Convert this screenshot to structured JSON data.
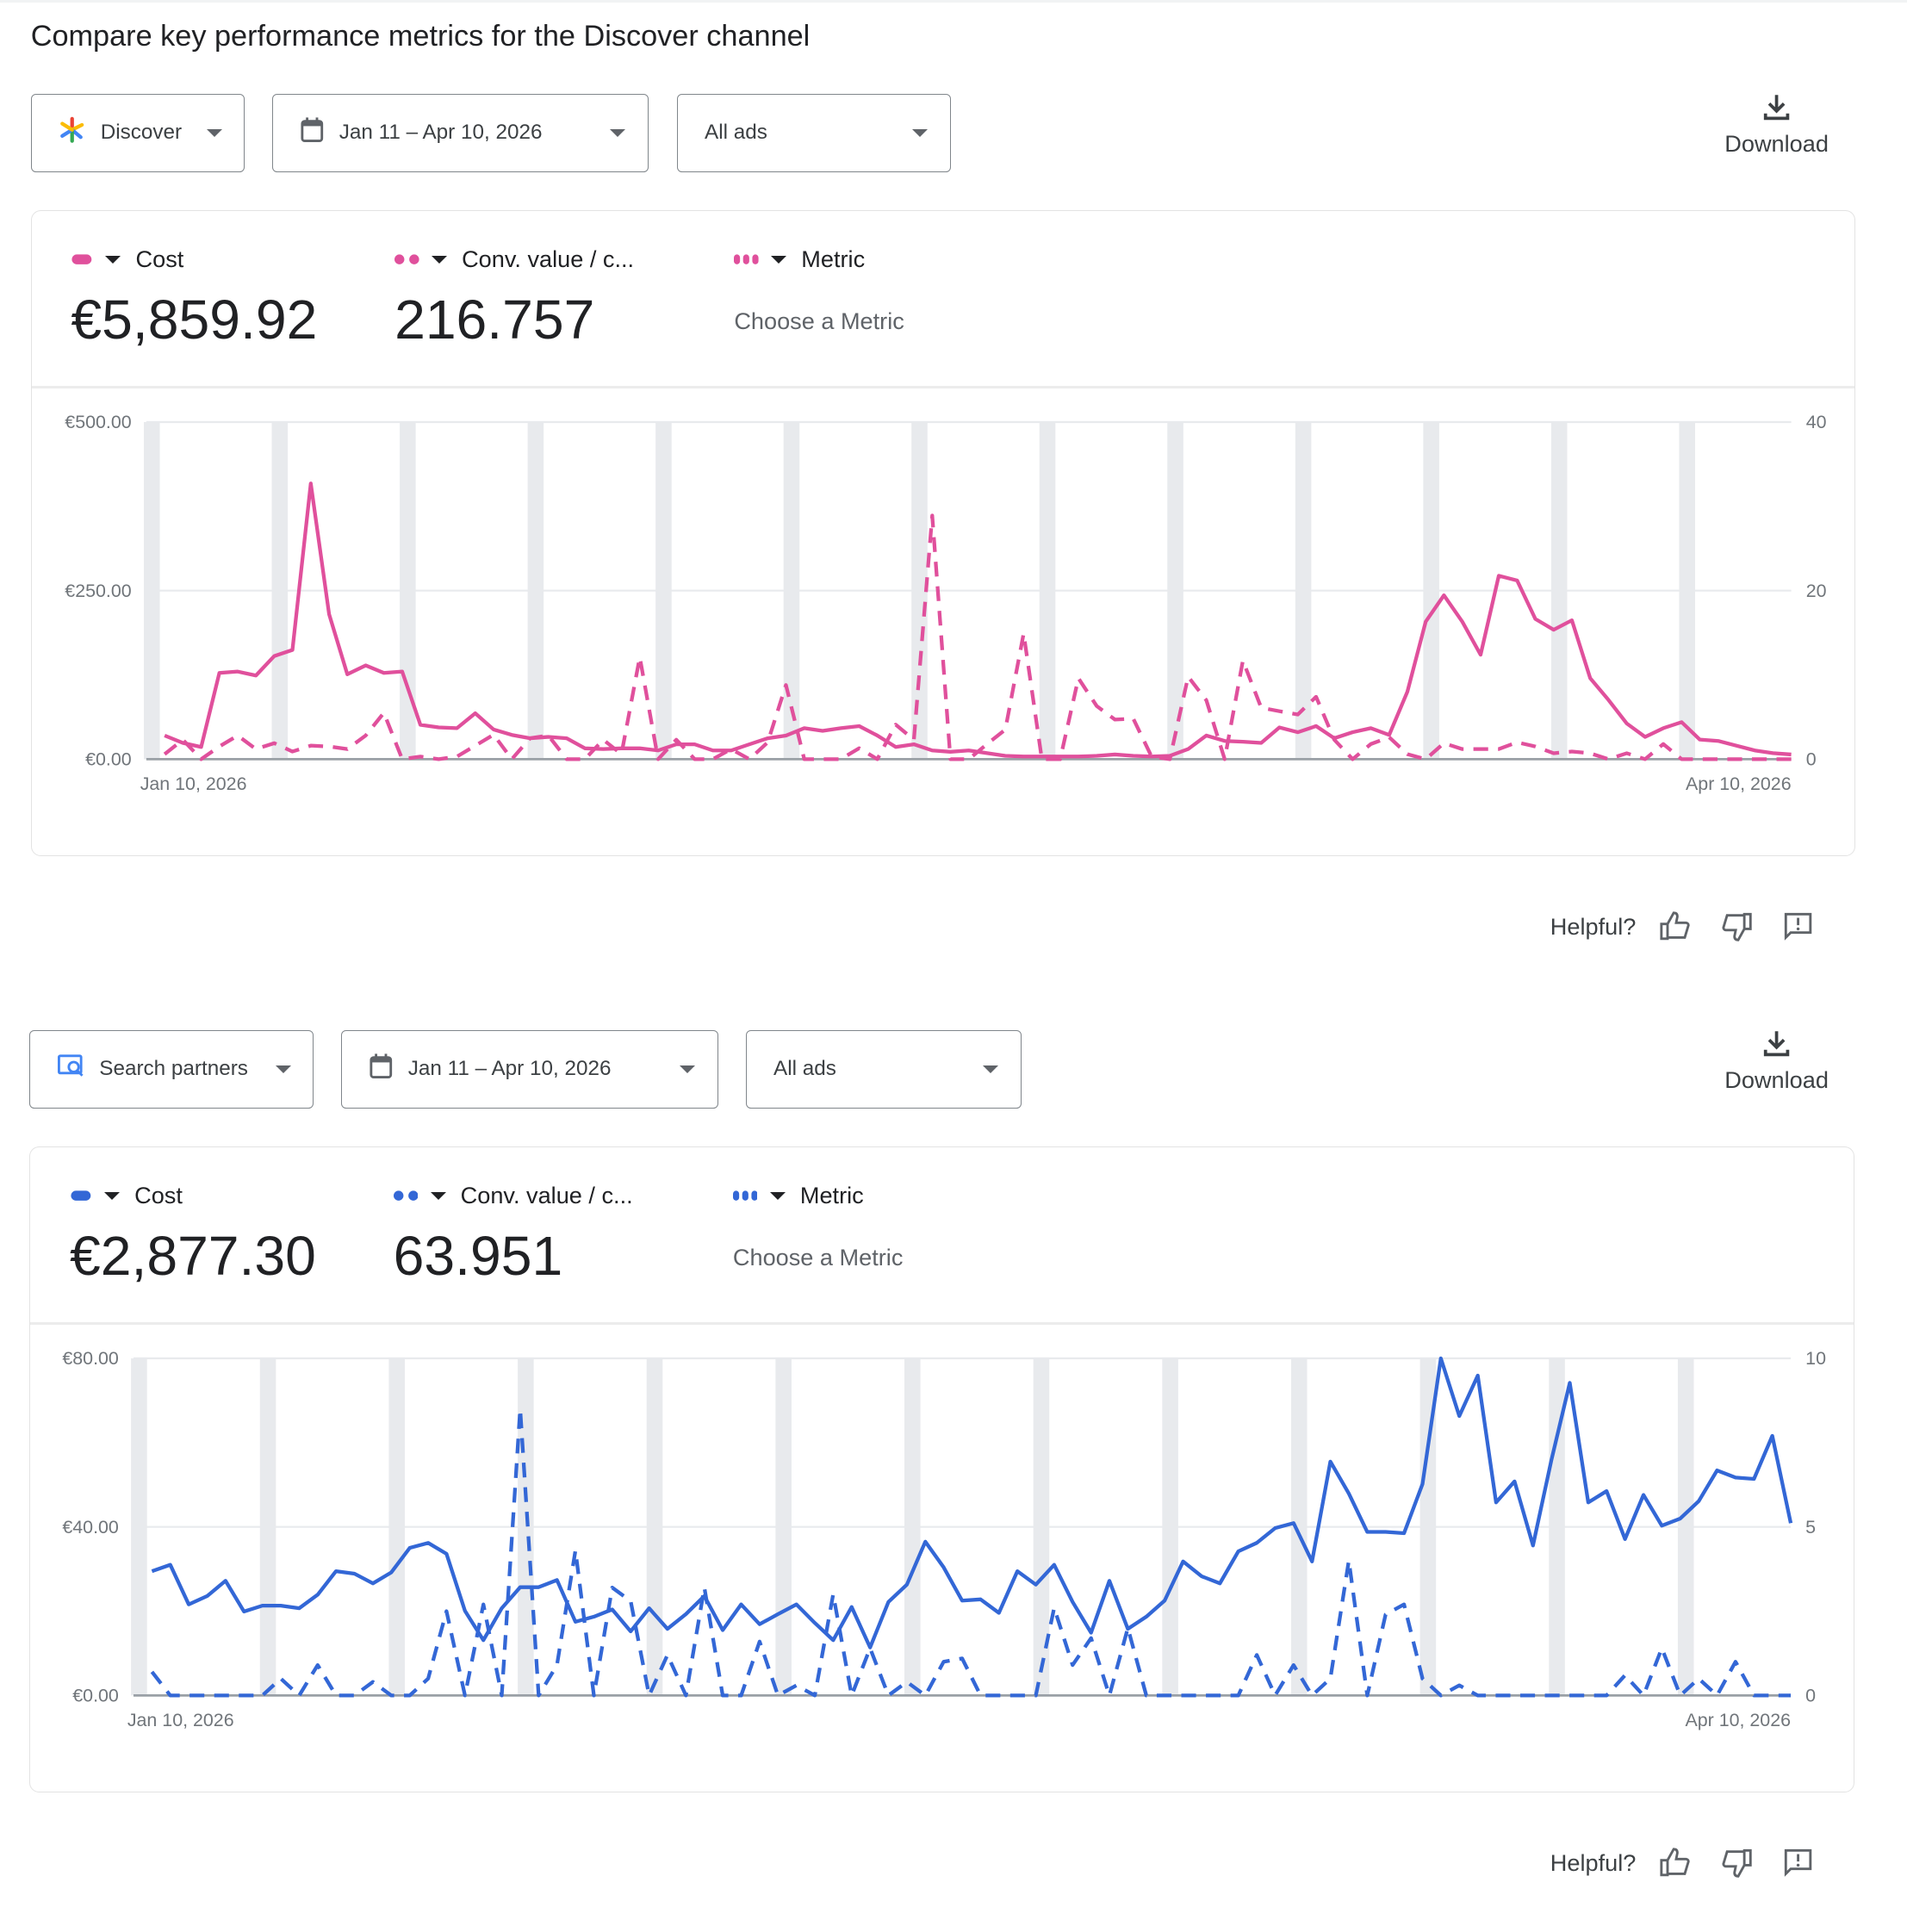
{
  "title": "Compare key performance metrics for the Discover channel",
  "feedback": {
    "label": "Helpful?"
  },
  "download_label": "Download",
  "sections": [
    {
      "channel": "Discover",
      "channel_icon": "discover-star-icon",
      "date_range": "Jan 11 – Apr 10, 2026",
      "ads_filter": "All ads",
      "color": "#e0509c",
      "metrics": [
        {
          "name": "Cost",
          "value": "€5,859.92",
          "line": "solid"
        },
        {
          "name": "Conv. value / c...",
          "value": "216.757",
          "line": "dashed"
        },
        {
          "name": "Metric",
          "placeholder": "Choose a Metric",
          "line": "dotted"
        }
      ]
    },
    {
      "channel": "Search partners",
      "channel_icon": "search-partners-icon",
      "date_range": "Jan 11 – Apr 10, 2026",
      "ads_filter": "All ads",
      "color": "#3367d6",
      "metrics": [
        {
          "name": "Cost",
          "value": "€2,877.30",
          "line": "solid"
        },
        {
          "name": "Conv. value / c...",
          "value": "63.951",
          "line": "dashed"
        },
        {
          "name": "Metric",
          "placeholder": "Choose a Metric",
          "line": "dotted"
        }
      ]
    }
  ],
  "chart_data": [
    {
      "type": "line",
      "x_range": [
        "2026-01-10",
        "2026-04-10"
      ],
      "x_tick_labels": [
        "Jan 10, 2026",
        "Apr 10, 2026"
      ],
      "y_left": {
        "ticks": [
          "€500.00",
          "€250.00",
          "€0.00"
        ],
        "range": [
          0,
          500
        ]
      },
      "y_right": {
        "ticks": [
          "40",
          "20",
          "0"
        ],
        "range": [
          0,
          40
        ]
      },
      "weekend_bands": true,
      "grid": true,
      "series": [
        {
          "name": "Cost",
          "axis": "left",
          "style": "solid",
          "values": [
            35,
            24,
            18,
            128,
            130,
            124,
            153,
            162,
            409,
            215,
            126,
            139,
            128,
            130,
            51,
            47,
            46,
            68,
            44,
            36,
            31,
            33,
            31,
            16,
            15,
            16,
            16,
            13,
            22,
            22,
            13,
            13,
            22,
            31,
            35,
            46,
            42,
            46,
            49,
            35,
            18,
            22,
            13,
            11,
            13,
            9,
            5,
            4,
            4,
            4,
            4,
            5,
            7,
            5,
            4,
            5,
            15,
            35,
            27,
            26,
            24,
            47,
            40,
            49,
            31,
            40,
            46,
            36,
            100,
            204,
            243,
            204,
            155,
            272,
            265,
            208,
            192,
            206,
            120,
            88,
            53,
            33,
            46,
            55,
            29,
            27,
            20,
            13,
            9,
            7
          ]
        },
        {
          "name": "Conv. value / c...",
          "axis": "right",
          "style": "dashed",
          "values": [
            0.6,
            2.3,
            0,
            1.5,
            2.8,
            1.2,
            1.9,
            0.9,
            1.6,
            1.5,
            1.2,
            2.8,
            5.5,
            0,
            0.3,
            0,
            0.3,
            1.6,
            2.9,
            0,
            2.5,
            2.8,
            0,
            0,
            2.3,
            0.6,
            12.1,
            0,
            2.3,
            0,
            0,
            1.2,
            0,
            2,
            8.8,
            0,
            0,
            0,
            1.3,
            0,
            4.1,
            2.3,
            28.9,
            0,
            0,
            1.8,
            3.5,
            14.9,
            0,
            0,
            9.6,
            6.3,
            4.7,
            4.8,
            0.3,
            0,
            9.8,
            7,
            0,
            11.7,
            6.1,
            5.7,
            5.3,
            7.4,
            2.3,
            0,
            1.8,
            2.6,
            0.6,
            0,
            1.9,
            1.2,
            1.2,
            1.2,
            2,
            1.5,
            0.7,
            0.9,
            0.7,
            0,
            0.7,
            0,
            1.8,
            0,
            0,
            0,
            0,
            0,
            0,
            0
          ]
        }
      ]
    },
    {
      "type": "line",
      "x_range": [
        "2026-01-10",
        "2026-04-10"
      ],
      "x_tick_labels": [
        "Jan 10, 2026",
        "Apr 10, 2026"
      ],
      "y_left": {
        "ticks": [
          "€80.00",
          "€40.00",
          "€0.00"
        ],
        "range": [
          0,
          80
        ]
      },
      "y_right": {
        "ticks": [
          "10",
          "5",
          "0"
        ],
        "range": [
          0,
          10
        ]
      },
      "weekend_bands": true,
      "grid": true,
      "series": [
        {
          "name": "Cost",
          "axis": "left",
          "style": "solid",
          "values": [
            29.5,
            31,
            21.6,
            23.6,
            27.2,
            19.9,
            21.3,
            21.3,
            20.7,
            23.9,
            29.5,
            28.9,
            26.6,
            29.2,
            35,
            36.2,
            33.6,
            20.1,
            13.1,
            20.7,
            25.7,
            25.7,
            27.4,
            17.5,
            18.7,
            20.4,
            15.2,
            20.7,
            15.8,
            19.3,
            23.6,
            15.5,
            21.6,
            16.9,
            19.3,
            21.6,
            17.2,
            13.1,
            21,
            11.4,
            22.2,
            26.3,
            36.5,
            30.4,
            22.5,
            22.8,
            19.6,
            29.5,
            26.3,
            31,
            22.2,
            14.9,
            27.2,
            15.8,
            18.7,
            22.5,
            31.8,
            28.3,
            26.6,
            34.2,
            36.2,
            39.7,
            40.9,
            31.8,
            55.5,
            47.9,
            38.8,
            38.8,
            38.5,
            50.2,
            80,
            66.3,
            75.9,
            45.8,
            50.8,
            35.6,
            55.8,
            74.2,
            45.8,
            48.5,
            37.1,
            47.6,
            40.3,
            42,
            46.1,
            53.4,
            51.7,
            51.4,
            61.6,
            40.9
          ]
        },
        {
          "name": "Conv. value / c...",
          "axis": "right",
          "style": "dashed",
          "values": [
            0.7,
            0,
            0,
            0,
            0,
            0,
            0,
            0.5,
            0,
            0.9,
            0,
            0,
            0.4,
            0,
            0,
            0.5,
            2.5,
            0,
            2.7,
            0,
            8.5,
            0,
            0.9,
            4.3,
            0,
            3.2,
            2.8,
            0,
            1.2,
            0,
            3.2,
            0,
            0,
            1.6,
            0,
            0.3,
            0,
            3,
            0,
            1.4,
            0,
            0.4,
            0,
            1,
            1.1,
            0,
            0,
            0,
            0,
            2.6,
            0.9,
            1.7,
            0,
            2,
            0,
            0,
            0,
            0,
            0,
            0,
            1.2,
            0,
            0.9,
            0,
            0.5,
            4,
            0,
            2.4,
            2.7,
            0.5,
            0,
            0.3,
            0,
            0,
            0,
            0,
            0,
            0,
            0,
            0,
            0.6,
            0,
            1.4,
            0,
            0.5,
            0,
            1,
            0,
            0,
            0
          ]
        }
      ]
    }
  ]
}
